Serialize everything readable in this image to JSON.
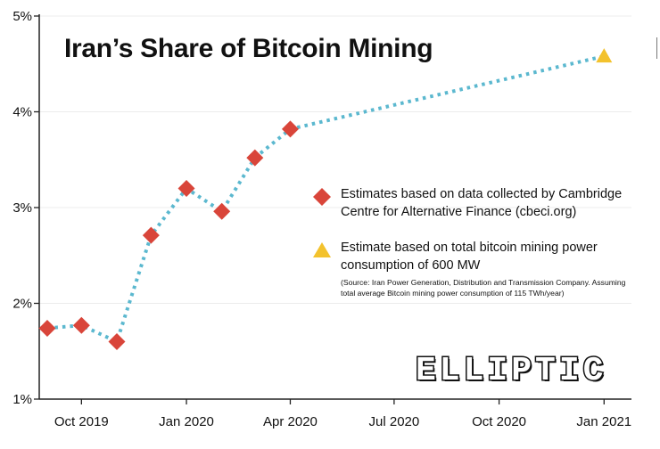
{
  "chart_data": {
    "type": "line",
    "title": "Iran’s Share of Bitcoin Mining",
    "xlabel": "",
    "ylabel": "",
    "x_ticks": [
      "Oct 2019",
      "Jan 2020",
      "Apr 2020",
      "Jul 2020",
      "Oct 2020",
      "Jan 2021"
    ],
    "y_ticks": [
      "1%",
      "2%",
      "3%",
      "4%",
      "5%"
    ],
    "ylim": [
      1,
      5
    ],
    "xlim": [
      "2019-08-25",
      "2021-01-25"
    ],
    "grid": true,
    "series": [
      {
        "name": "Estimates based on data collected by Cambridge Centre for Alternative Finance (cbeci.org)",
        "marker": "diamond",
        "color": "#d9453a",
        "points": [
          {
            "x": "2019-09-01",
            "y": 1.74
          },
          {
            "x": "2019-10-01",
            "y": 1.77
          },
          {
            "x": "2019-11-01",
            "y": 1.6
          },
          {
            "x": "2019-12-01",
            "y": 2.71
          },
          {
            "x": "2020-01-01",
            "y": 3.2
          },
          {
            "x": "2020-02-01",
            "y": 2.96
          },
          {
            "x": "2020-03-01",
            "y": 3.52
          },
          {
            "x": "2020-04-01",
            "y": 3.82
          }
        ]
      },
      {
        "name": "Estimate based on total bitcoin mining power consumption of 600 MW",
        "marker": "triangle",
        "color": "#f3c22d",
        "points": [
          {
            "x": "2021-01-01",
            "y": 4.58
          }
        ]
      }
    ],
    "connector": {
      "style": "dotted",
      "color": "#5bb8cf"
    },
    "legend": {
      "position": "right",
      "items": [
        {
          "text": "Estimates based on data collected by Cambridge Centre for Alternative Finance (cbeci.org)",
          "marker": "diamond",
          "color": "#d9453a"
        },
        {
          "text": "Estimate based on total bitcoin mining power consumption of 600 MW",
          "marker": "triangle",
          "color": "#f3c22d",
          "source": "(Source: Iran Power Generation, Distribution and Transmission Company. Assuming total average Bitcoin mining power consumption of 115 TWh/year)"
        }
      ]
    }
  },
  "logo": {
    "text": "ELLIPTIC"
  }
}
